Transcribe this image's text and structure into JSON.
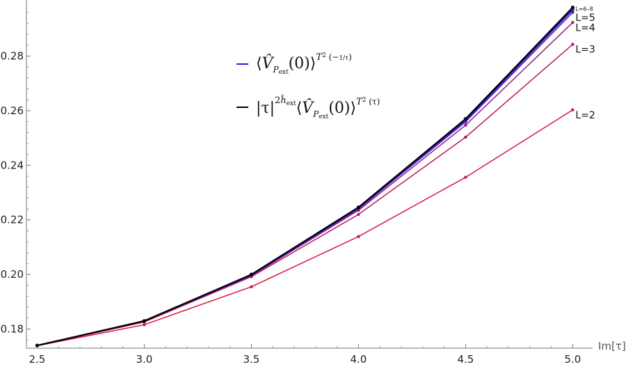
{
  "chart_data": {
    "type": "line",
    "xlabel": "Im[τ]",
    "ylabel": "",
    "xlim": [
      2.45,
      5.08
    ],
    "ylim": [
      0.173,
      0.2985
    ],
    "x_ticks": [
      "2.5",
      "3.0",
      "3.5",
      "4.0",
      "4.5",
      "5.0"
    ],
    "y_ticks": [
      "0.18",
      "0.20",
      "0.22",
      "0.24",
      "0.26",
      "0.28"
    ],
    "x": [
      2.5,
      3.0,
      3.5,
      4.0,
      4.5,
      5.0
    ],
    "series": [
      {
        "name": "L=2",
        "color": "#d8143c",
        "values": [
          0.1739,
          0.1816,
          0.1955,
          0.2139,
          0.2356,
          0.2603
        ]
      },
      {
        "name": "L=3",
        "color": "#b71860",
        "values": [
          0.1739,
          0.1826,
          0.1992,
          0.222,
          0.2503,
          0.2843
        ]
      },
      {
        "name": "L=4",
        "color": "#8d1c88",
        "values": [
          0.174,
          0.1828,
          0.1995,
          0.2235,
          0.2547,
          0.2923
        ]
      },
      {
        "name": "L=5",
        "color": "#6a1f9f",
        "values": [
          0.174,
          0.1829,
          0.1997,
          0.224,
          0.2559,
          0.296
        ]
      },
      {
        "name": "",
        "color": "#3a21c8",
        "values": [
          0.174,
          0.1829,
          0.1998,
          0.2242,
          0.2563,
          0.2968
        ]
      },
      {
        "name": "",
        "color": "#2c22e0",
        "values": [
          0.174,
          0.1829,
          0.1998,
          0.2243,
          0.2565,
          0.2971
        ]
      },
      {
        "name": "L=6–8",
        "color": "#2a1ee8",
        "values": [
          0.174,
          0.1829,
          0.1998,
          0.2244,
          0.2567,
          0.2973
        ]
      },
      {
        "name": "",
        "color": "#000000",
        "values": [
          0.174,
          0.183,
          0.2,
          0.2246,
          0.257,
          0.2978
        ]
      }
    ],
    "legend": {
      "placement": "top-center",
      "entries": [
        {
          "color": "#1f1fe0",
          "text": "⟨V̂P_ext(0)⟩^T²(−1/τ)"
        },
        {
          "color": "#000000",
          "text": "|τ|^(2ĥ_ext)⟨V̂P_ext(0)⟩^T²(τ)"
        }
      ]
    },
    "grid": false
  }
}
